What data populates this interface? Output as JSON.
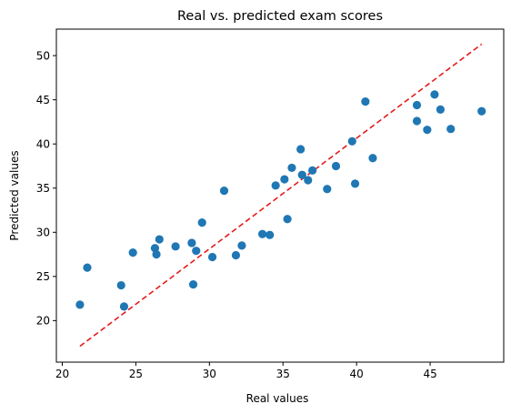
{
  "chart_data": {
    "type": "scatter",
    "title": "Real vs. predicted exam scores",
    "xlabel": "Real values",
    "ylabel": "Predicted values",
    "xlim": [
      19.6,
      50.0
    ],
    "ylim": [
      15.3,
      53.0
    ],
    "xticks": [
      20,
      25,
      30,
      35,
      40,
      45
    ],
    "yticks": [
      20,
      25,
      30,
      35,
      40,
      45,
      50
    ],
    "grid": false,
    "point_color": "#1f77b4",
    "reference_line": {
      "style": "dashed",
      "color": "#e41a1c",
      "x": [
        21.2,
        48.5
      ],
      "y": [
        17.1,
        51.3
      ]
    },
    "series": [
      {
        "points": [
          [
            21.2,
            21.8
          ],
          [
            21.7,
            26.0
          ],
          [
            24.0,
            24.0
          ],
          [
            24.2,
            21.6
          ],
          [
            24.8,
            27.7
          ],
          [
            26.3,
            28.2
          ],
          [
            26.4,
            27.5
          ],
          [
            26.6,
            29.2
          ],
          [
            27.7,
            28.4
          ],
          [
            28.8,
            28.8
          ],
          [
            28.9,
            24.1
          ],
          [
            29.1,
            27.9
          ],
          [
            29.5,
            31.1
          ],
          [
            30.2,
            27.2
          ],
          [
            31.0,
            34.7
          ],
          [
            31.8,
            27.4
          ],
          [
            32.2,
            28.5
          ],
          [
            33.6,
            29.8
          ],
          [
            34.1,
            29.7
          ],
          [
            34.5,
            35.3
          ],
          [
            35.1,
            36.0
          ],
          [
            35.3,
            31.5
          ],
          [
            35.6,
            37.3
          ],
          [
            36.2,
            39.4
          ],
          [
            36.3,
            36.5
          ],
          [
            36.7,
            35.9
          ],
          [
            37.0,
            37.0
          ],
          [
            38.0,
            34.9
          ],
          [
            38.6,
            37.5
          ],
          [
            39.7,
            40.3
          ],
          [
            39.9,
            35.5
          ],
          [
            40.6,
            44.8
          ],
          [
            41.1,
            38.4
          ],
          [
            44.1,
            44.4
          ],
          [
            44.1,
            42.6
          ],
          [
            44.8,
            41.6
          ],
          [
            45.3,
            45.6
          ],
          [
            45.7,
            43.9
          ],
          [
            46.4,
            41.7
          ],
          [
            48.5,
            43.7
          ]
        ]
      }
    ]
  }
}
